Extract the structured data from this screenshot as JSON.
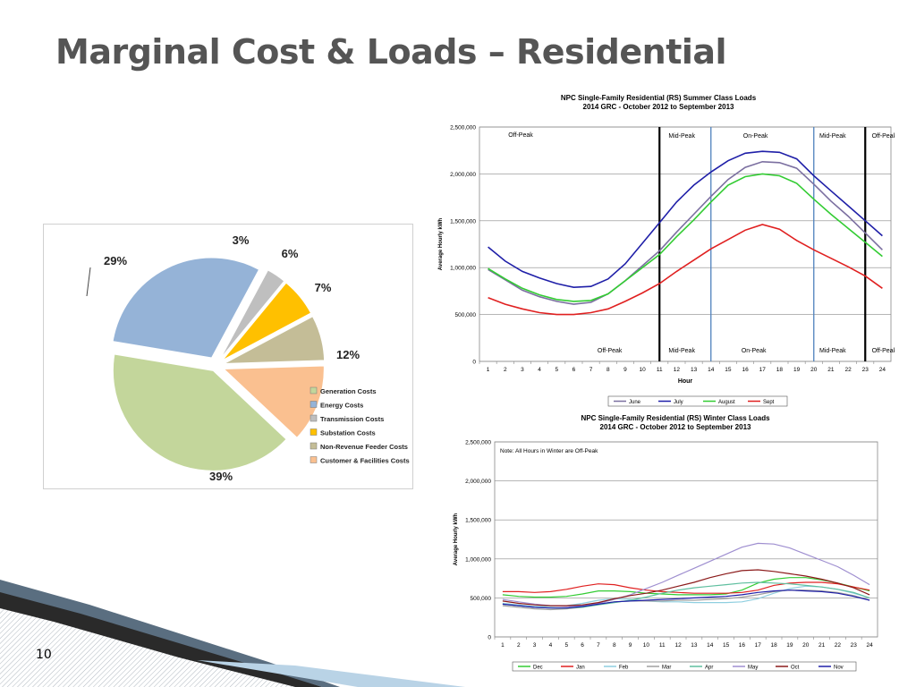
{
  "slide": {
    "title": "Marginal Cost & Loads – Residential",
    "page_number": "10"
  },
  "chart_data": [
    {
      "type": "pie",
      "categories": [
        "Generation Costs",
        "Energy Costs",
        "Transmission Costs",
        "Substation Costs",
        "Non-Revenue Feeder Costs",
        "Customer & Facilities Costs"
      ],
      "values": [
        39,
        29,
        3,
        6,
        7,
        12
      ],
      "value_labels": [
        "39%",
        "29%",
        "3%",
        "6%",
        "7%",
        "12%"
      ],
      "colors": [
        "#c3d69b",
        "#95b3d7",
        "#bfbfbf",
        "#ffc000",
        "#c4bd97",
        "#fac090"
      ],
      "exploded": true,
      "legend": "bottom-right"
    },
    {
      "type": "line",
      "title": "NPC Single-Family Residential (RS) Summer Class Loads",
      "subtitle": "2014 GRC - October 2012 to September 2013",
      "xlabel": "Hour",
      "ylabel": "Average Hourly kWh",
      "x": [
        1,
        2,
        3,
        4,
        5,
        6,
        7,
        8,
        9,
        10,
        11,
        12,
        13,
        14,
        15,
        16,
        17,
        18,
        19,
        20,
        21,
        22,
        23,
        24
      ],
      "ylim": [
        0,
        2500000
      ],
      "yticks": [
        "0",
        "500,000",
        "1,000,000",
        "1,500,000",
        "2,000,000",
        "2,500,000"
      ],
      "grid": true,
      "legend": "bottom",
      "series": [
        {
          "name": "June",
          "color": "#7b6fa0",
          "values": [
            980000,
            870000,
            760000,
            690000,
            640000,
            610000,
            630000,
            720000,
            860000,
            1020000,
            1180000,
            1380000,
            1570000,
            1760000,
            1940000,
            2070000,
            2130000,
            2120000,
            2060000,
            1890000,
            1710000,
            1550000,
            1370000,
            1190000
          ]
        },
        {
          "name": "July",
          "color": "#1f1fa8",
          "values": [
            1220000,
            1070000,
            960000,
            890000,
            830000,
            790000,
            800000,
            880000,
            1040000,
            1260000,
            1480000,
            1700000,
            1880000,
            2020000,
            2140000,
            2220000,
            2240000,
            2230000,
            2160000,
            1980000,
            1820000,
            1660000,
            1500000,
            1340000
          ]
        },
        {
          "name": "August",
          "color": "#33cc33",
          "values": [
            990000,
            880000,
            780000,
            710000,
            660000,
            640000,
            650000,
            720000,
            860000,
            1000000,
            1140000,
            1330000,
            1510000,
            1700000,
            1880000,
            1970000,
            2000000,
            1980000,
            1900000,
            1730000,
            1570000,
            1420000,
            1270000,
            1120000
          ]
        },
        {
          "name": "Sept",
          "color": "#e02020",
          "values": [
            680000,
            610000,
            560000,
            520000,
            500000,
            500000,
            520000,
            560000,
            640000,
            730000,
            830000,
            960000,
            1080000,
            1200000,
            1300000,
            1400000,
            1460000,
            1410000,
            1290000,
            1190000,
            1100000,
            1010000,
            910000,
            780000
          ]
        }
      ],
      "period_labels_top": [
        "Off-Peak",
        "Mid-Peak",
        "On-Peak",
        "Mid-Peak",
        "Off-Peak"
      ],
      "period_labels_bottom": [
        "Off-Peak",
        "Mid-Peak",
        "On-Peak",
        "Mid-Peak",
        "Off-Peak"
      ],
      "period_boundaries": [
        {
          "hour": 10.5,
          "color": "#000000"
        },
        {
          "hour": 13.5,
          "color": "#4f81bd"
        },
        {
          "hour": 19.5,
          "color": "#4f81bd"
        },
        {
          "hour": 22.5,
          "color": "#000000"
        }
      ]
    },
    {
      "type": "line",
      "title": "NPC Single-Family Residential (RS) Winter Class Loads",
      "subtitle": "2014 GRC - October 2012 to September 2013",
      "ylabel": "Average Hourly kWh",
      "annotation": "Note: All Hours in Winter are Off-Peak",
      "x": [
        1,
        2,
        3,
        4,
        5,
        6,
        7,
        8,
        9,
        10,
        11,
        12,
        13,
        14,
        15,
        16,
        17,
        18,
        19,
        20,
        21,
        22,
        23,
        24
      ],
      "ylim": [
        0,
        2500000
      ],
      "yticks": [
        "0",
        "500,000",
        "1,000,000",
        "1,500,000",
        "2,000,000",
        "2,500,000"
      ],
      "grid": true,
      "legend": "bottom",
      "series": [
        {
          "name": "Dec",
          "color": "#33cc33",
          "values": [
            540000,
            520000,
            510000,
            510000,
            520000,
            550000,
            590000,
            590000,
            580000,
            560000,
            550000,
            540000,
            540000,
            540000,
            550000,
            600000,
            690000,
            740000,
            760000,
            760000,
            730000,
            690000,
            640000,
            590000
          ]
        },
        {
          "name": "Jan",
          "color": "#e02020",
          "values": [
            580000,
            580000,
            570000,
            580000,
            610000,
            650000,
            680000,
            670000,
            630000,
            600000,
            580000,
            570000,
            560000,
            560000,
            560000,
            570000,
            600000,
            660000,
            690000,
            700000,
            700000,
            680000,
            640000,
            600000
          ]
        },
        {
          "name": "Feb",
          "color": "#8fcfe0",
          "values": [
            430000,
            410000,
            390000,
            390000,
            400000,
            430000,
            470000,
            490000,
            480000,
            460000,
            450000,
            450000,
            440000,
            440000,
            440000,
            450000,
            490000,
            560000,
            620000,
            650000,
            640000,
            610000,
            560000,
            500000
          ]
        },
        {
          "name": "Mar",
          "color": "#a0a0a0",
          "values": [
            400000,
            380000,
            360000,
            350000,
            360000,
            380000,
            420000,
            450000,
            460000,
            460000,
            460000,
            470000,
            470000,
            480000,
            490000,
            510000,
            540000,
            580000,
            600000,
            600000,
            590000,
            570000,
            530000,
            470000
          ]
        },
        {
          "name": "Apr",
          "color": "#5fbf9f",
          "values": [
            420000,
            400000,
            380000,
            370000,
            370000,
            380000,
            410000,
            440000,
            470000,
            510000,
            560000,
            600000,
            630000,
            650000,
            670000,
            690000,
            700000,
            690000,
            680000,
            660000,
            640000,
            610000,
            570000,
            500000
          ]
        },
        {
          "name": "May",
          "color": "#9f8fd0",
          "values": [
            480000,
            450000,
            420000,
            400000,
            390000,
            400000,
            430000,
            480000,
            540000,
            620000,
            700000,
            790000,
            880000,
            970000,
            1060000,
            1150000,
            1200000,
            1190000,
            1140000,
            1060000,
            980000,
            900000,
            790000,
            670000
          ]
        },
        {
          "name": "Oct",
          "color": "#8b1a1a",
          "values": [
            460000,
            430000,
            410000,
            400000,
            400000,
            410000,
            440000,
            490000,
            530000,
            560000,
            600000,
            650000,
            700000,
            760000,
            810000,
            850000,
            860000,
            840000,
            810000,
            780000,
            740000,
            690000,
            630000,
            540000
          ]
        },
        {
          "name": "Nov",
          "color": "#1f1fa8",
          "values": [
            420000,
            400000,
            380000,
            370000,
            370000,
            390000,
            420000,
            450000,
            460000,
            470000,
            480000,
            490000,
            500000,
            510000,
            520000,
            540000,
            570000,
            590000,
            600000,
            590000,
            580000,
            560000,
            520000,
            470000
          ]
        }
      ]
    }
  ]
}
